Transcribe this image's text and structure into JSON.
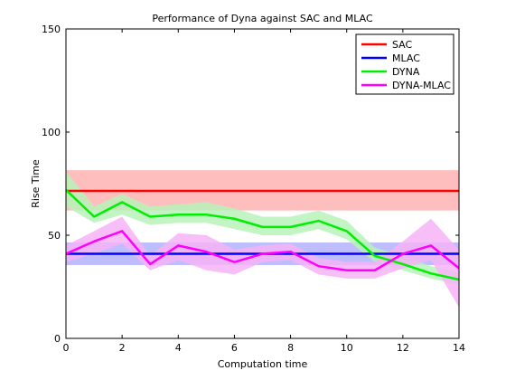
{
  "chart_data": {
    "type": "line",
    "title": "Performance of Dyna against SAC and MLAC",
    "xlabel": "Computation time",
    "ylabel": "Rise Time",
    "xlim": [
      0,
      14
    ],
    "ylim": [
      0,
      150
    ],
    "xticks": [
      "0",
      "2",
      "4",
      "6",
      "8",
      "10",
      "12",
      "14"
    ],
    "yticks": [
      "0",
      "50",
      "100",
      "150"
    ],
    "legend_position": "top-right",
    "series": [
      {
        "name": "SAC",
        "color": "#ff0000",
        "band_color": "#ffb3b3",
        "x": [
          0,
          14
        ],
        "y": [
          71.5,
          71.5
        ],
        "lower": [
          62,
          62
        ],
        "upper": [
          81.5,
          81.5
        ]
      },
      {
        "name": "MLAC",
        "color": "#0000ff",
        "band_color": "#b3b3ff",
        "x": [
          0,
          14
        ],
        "y": [
          41,
          41
        ],
        "lower": [
          35.5,
          35.5
        ],
        "upper": [
          46.5,
          46.5
        ]
      },
      {
        "name": "DYNA",
        "color": "#00ee00",
        "band_color": "#b8f2b8",
        "x": [
          0,
          1,
          2,
          3,
          4,
          5,
          6,
          7,
          8,
          9,
          10,
          11,
          12,
          13,
          14
        ],
        "y": [
          72,
          59,
          66,
          59,
          60,
          60,
          58,
          54,
          54,
          57,
          52,
          40,
          36,
          31.5,
          28.5
        ],
        "lower": [
          64,
          56,
          60,
          55,
          56,
          56,
          53,
          50,
          50,
          53,
          48,
          37,
          33,
          29,
          26
        ],
        "upper": [
          81,
          64,
          70,
          64,
          65,
          66,
          63,
          59,
          59,
          62,
          57,
          44,
          40,
          35,
          32
        ]
      },
      {
        "name": "DYNA-MLAC",
        "color": "#ff00ff",
        "band_color": "#f7b3f7",
        "x": [
          0,
          1,
          2,
          3,
          4,
          5,
          6,
          7,
          8,
          9,
          10,
          11,
          12,
          13,
          14
        ],
        "y": [
          41,
          47,
          52,
          36,
          45,
          42,
          37,
          41,
          42,
          35,
          33,
          33,
          41,
          45,
          34
        ],
        "lower": [
          37,
          41,
          46,
          33,
          38,
          33,
          31,
          37,
          38,
          31,
          29,
          29,
          34,
          38,
          15
        ],
        "upper": [
          45,
          52,
          59,
          40,
          51,
          50,
          43,
          45,
          46,
          39,
          37,
          37,
          47,
          58,
          43
        ]
      }
    ]
  }
}
